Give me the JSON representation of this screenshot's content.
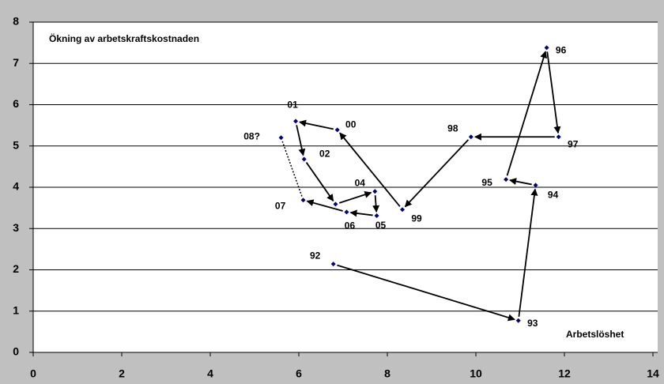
{
  "chart_data": {
    "type": "scatter",
    "title": "Ökning av arbetskraftskostnaden",
    "x_label": "Arbetslöshet",
    "labels": [
      "92",
      "93",
      "94",
      "95",
      "96",
      "97",
      "98",
      "99",
      "00",
      "01",
      "02",
      null,
      "04",
      "05",
      "06",
      "07",
      "08?"
    ],
    "x": [
      6.78,
      10.96,
      11.35,
      10.68,
      11.6,
      11.87,
      9.89,
      8.34,
      6.87,
      5.93,
      6.12,
      6.83,
      7.72,
      7.76,
      7.08,
      6.1,
      5.6
    ],
    "values": [
      2.14,
      0.77,
      4.05,
      4.19,
      7.38,
      5.22,
      5.22,
      3.46,
      5.39,
      5.6,
      4.68,
      3.59,
      3.9,
      3.31,
      3.4,
      3.69,
      5.2
    ],
    "color": "#000080",
    "xlim": [
      0,
      14
    ],
    "xticks": [
      0,
      2,
      4,
      6,
      8,
      10,
      12,
      14
    ],
    "ylim": [
      0,
      8
    ],
    "yticks": [
      0,
      1,
      2,
      3,
      4,
      5,
      6,
      7,
      8
    ],
    "grid": true
  }
}
